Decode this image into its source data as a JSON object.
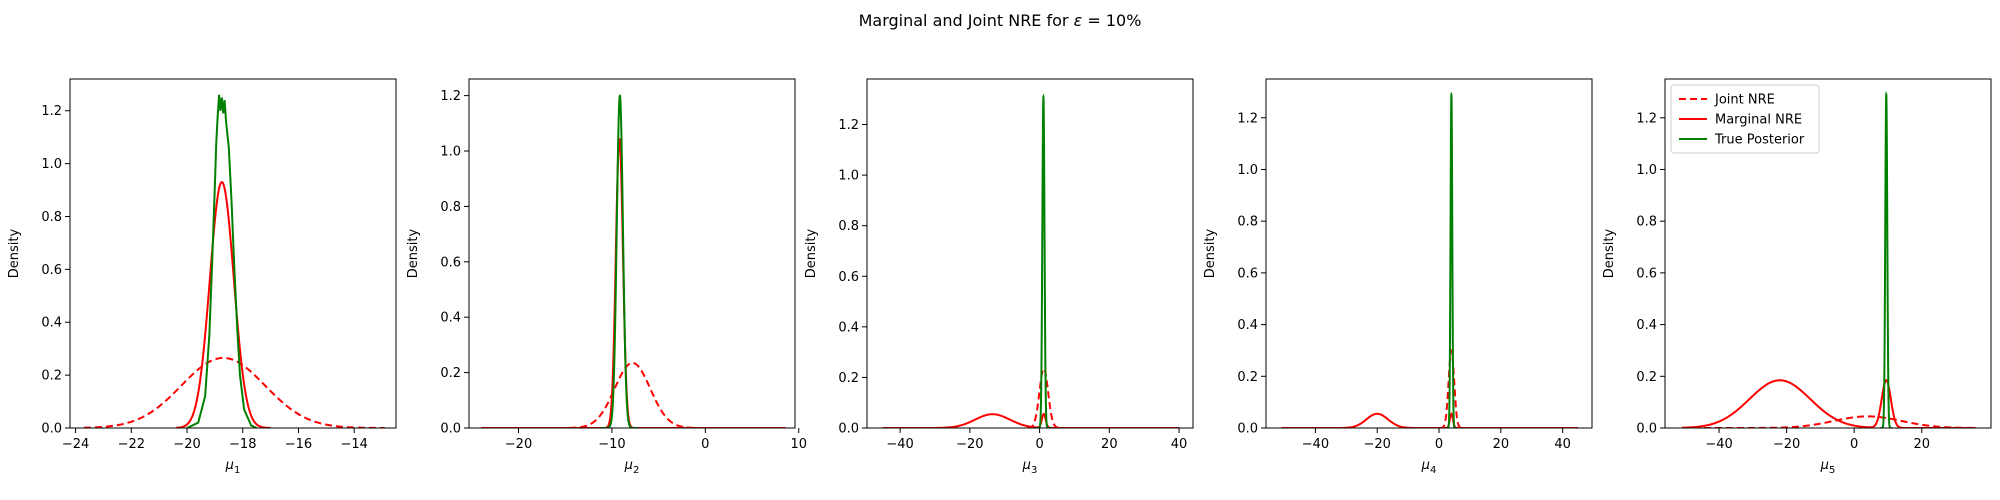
{
  "figure": {
    "title_prefix": "Marginal and Joint NRE for ",
    "title_symbol": "ε",
    "title_suffix": " =  10%"
  },
  "legend": {
    "placement": "top-left",
    "entries": [
      {
        "label": "Joint NRE",
        "color": "#ff0000",
        "style": "dashed"
      },
      {
        "label": "Marginal NRE",
        "color": "#ff0000",
        "style": "solid"
      },
      {
        "label": "True Posterior",
        "color": "#008000",
        "style": "solid"
      }
    ]
  },
  "chart_data": [
    {
      "type": "line",
      "xlabel": {
        "base": "μ",
        "sub": "1"
      },
      "ylabel": "Density",
      "xlim": [
        -24.2,
        -12.5
      ],
      "ylim": [
        0,
        1.32
      ],
      "xticks": [
        -24,
        -22,
        -20,
        -18,
        -16,
        -14
      ],
      "yticks": [
        0.0,
        0.2,
        0.4,
        0.6,
        0.8,
        1.0,
        1.2
      ],
      "series": [
        {
          "name": "Joint NRE",
          "color": "#ff0000",
          "style": "dashed",
          "kind": "gauss",
          "x_range": [
            -23.7,
            -12.9
          ],
          "components": [
            {
              "w": 1.0,
              "mu": -18.7,
              "sigma": 1.5
            }
          ]
        },
        {
          "name": "Marginal NRE",
          "color": "#ff0000",
          "style": "solid",
          "kind": "gauss",
          "x_range": [
            -20.4,
            -17.0
          ],
          "components": [
            {
              "w": 1.0,
              "mu": -18.75,
              "sigma": 0.43
            }
          ]
        },
        {
          "name": "True Posterior",
          "color": "#008000",
          "style": "solid",
          "kind": "points",
          "points": [
            [
              -20.0,
              0.0
            ],
            [
              -19.6,
              0.02
            ],
            [
              -19.35,
              0.12
            ],
            [
              -19.2,
              0.35
            ],
            [
              -19.1,
              0.62
            ],
            [
              -19.0,
              0.92
            ],
            [
              -18.95,
              1.08
            ],
            [
              -18.9,
              1.18
            ],
            [
              -18.85,
              1.26
            ],
            [
              -18.8,
              1.2
            ],
            [
              -18.75,
              1.25
            ],
            [
              -18.7,
              1.19
            ],
            [
              -18.65,
              1.24
            ],
            [
              -18.6,
              1.16
            ],
            [
              -18.5,
              1.06
            ],
            [
              -18.4,
              0.85
            ],
            [
              -18.3,
              0.6
            ],
            [
              -18.2,
              0.38
            ],
            [
              -18.1,
              0.2
            ],
            [
              -17.95,
              0.07
            ],
            [
              -17.7,
              0.01
            ],
            [
              -17.5,
              0.0
            ]
          ]
        }
      ]
    },
    {
      "type": "line",
      "xlabel": {
        "base": "μ",
        "sub": "2"
      },
      "ylabel": "Density",
      "xlim": [
        -25.3,
        9.6
      ],
      "ylim": [
        0,
        1.26
      ],
      "xticks": [
        -20,
        -10,
        0,
        10
      ],
      "yticks": [
        0.0,
        0.2,
        0.4,
        0.6,
        0.8,
        1.0,
        1.2
      ],
      "series": [
        {
          "name": "Joint NRE",
          "color": "#ff0000",
          "style": "dashed",
          "kind": "gauss",
          "x_range": [
            -24.0,
            8.6
          ],
          "components": [
            {
              "w": 1.0,
              "mu": -7.8,
              "sigma": 1.9
            }
          ]
        },
        {
          "name": "Marginal NRE",
          "color": "#ff0000",
          "style": "solid",
          "kind": "gauss",
          "x_range": [
            -24.0,
            8.6
          ],
          "components": [
            {
              "w": 1.0,
              "mu": -9.2,
              "sigma": 0.38
            }
          ]
        },
        {
          "name": "True Posterior",
          "color": "#008000",
          "style": "solid",
          "kind": "gauss",
          "x_range": [
            -11.2,
            -7.2
          ],
          "components": [
            {
              "w": 1.0,
              "mu": -9.15,
              "sigma": 0.33
            }
          ]
        }
      ]
    },
    {
      "type": "line",
      "xlabel": {
        "base": "μ",
        "sub": "3"
      },
      "ylabel": "Density",
      "xlim": [
        -49.5,
        44.0
      ],
      "ylim": [
        0,
        1.38
      ],
      "xticks": [
        -40,
        -20,
        0,
        20,
        40
      ],
      "yticks": [
        0.0,
        0.2,
        0.4,
        0.6,
        0.8,
        1.0,
        1.2
      ],
      "series": [
        {
          "name": "Joint NRE",
          "color": "#ff0000",
          "style": "dashed",
          "kind": "gauss",
          "x_range": [
            -3.5,
            6.0
          ],
          "components": [
            {
              "w": 1.0,
              "mu": 1.2,
              "sigma": 1.25
            }
          ]
        },
        {
          "name": "Marginal NRE",
          "color": "#ff0000",
          "style": "solid",
          "kind": "gauss",
          "x_range": [
            -45.0,
            40.0
          ],
          "components": [
            {
              "w": 1.0,
              "mu": -13.5,
              "sigma": 5.0
            },
            {
              "w": 1.0,
              "mu": 1.2,
              "sigma": 0.55
            }
          ]
        },
        {
          "name": "True Posterior",
          "color": "#008000",
          "style": "solid",
          "kind": "gauss",
          "x_range": [
            -1.0,
            3.2
          ],
          "components": [
            {
              "w": 1.0,
              "mu": 1.1,
              "sigma": 0.31
            }
          ]
        }
      ]
    },
    {
      "type": "line",
      "xlabel": {
        "base": "μ",
        "sub": "4"
      },
      "ylabel": "Density",
      "xlim": [
        -56.0,
        49.5
      ],
      "ylim": [
        0,
        1.35
      ],
      "xticks": [
        -40,
        -20,
        0,
        20,
        40
      ],
      "yticks": [
        0.0,
        0.2,
        0.4,
        0.6,
        0.8,
        1.0,
        1.2
      ],
      "series": [
        {
          "name": "Joint NRE",
          "color": "#ff0000",
          "style": "dashed",
          "kind": "gauss",
          "x_range": [
            0.0,
            8.0
          ],
          "components": [
            {
              "w": 1.0,
              "mu": 4.0,
              "sigma": 0.9
            }
          ]
        },
        {
          "name": "Marginal NRE",
          "color": "#ff0000",
          "style": "solid",
          "kind": "gauss",
          "x_range": [
            -51.0,
            45.0
          ],
          "components": [
            {
              "w": 1.0,
              "mu": -20.0,
              "sigma": 3.5
            },
            {
              "w": 1.0,
              "mu": 4.0,
              "sigma": 0.5
            }
          ]
        },
        {
          "name": "True Posterior",
          "color": "#008000",
          "style": "solid",
          "kind": "gauss",
          "x_range": [
            2.6,
            5.4
          ],
          "components": [
            {
              "w": 1.0,
              "mu": 4.0,
              "sigma": 0.28
            }
          ]
        }
      ]
    },
    {
      "type": "line",
      "xlabel": {
        "base": "μ",
        "sub": "5"
      },
      "ylabel": "Density",
      "xlim": [
        -56.0,
        40.5
      ],
      "ylim": [
        0,
        1.35
      ],
      "xticks": [
        -40,
        -20,
        0,
        20
      ],
      "yticks": [
        0.0,
        0.2,
        0.4,
        0.6,
        0.8,
        1.0,
        1.2
      ],
      "series": [
        {
          "name": "Joint NRE",
          "color": "#ff0000",
          "style": "dashed",
          "kind": "gauss",
          "x_range": [
            -51.0,
            36.0
          ],
          "components": [
            {
              "w": 1.0,
              "mu": 4.0,
              "sigma": 10.0
            }
          ]
        },
        {
          "name": "Marginal NRE",
          "color": "#ff0000",
          "style": "solid",
          "kind": "gauss",
          "x_range": [
            -51.0,
            36.0
          ],
          "components": [
            {
              "w": 1.0,
              "mu": -22.0,
              "sigma": 9.0
            },
            {
              "w": 1.0,
              "mu": 9.5,
              "sigma": 1.35
            }
          ]
        },
        {
          "name": "True Posterior",
          "color": "#008000",
          "style": "solid",
          "kind": "gauss",
          "x_range": [
            7.7,
            11.3
          ],
          "components": [
            {
              "w": 1.0,
              "mu": 9.5,
              "sigma": 0.3
            }
          ]
        }
      ]
    }
  ],
  "chart_peaks": [
    [
      0.265,
      0.93,
      null
    ],
    [
      0.235,
      1.045,
      1.2
    ],
    [
      0.235,
      0.055,
      1.31
    ],
    [
      0.3,
      0.055,
      1.29
    ],
    [
      0.045,
      0.185,
      1.29
    ]
  ]
}
